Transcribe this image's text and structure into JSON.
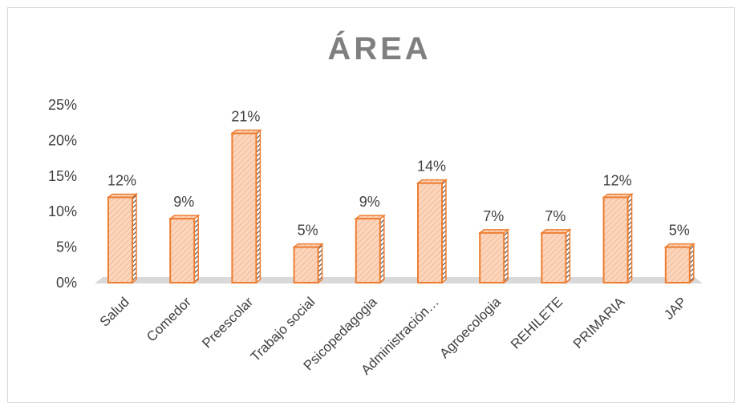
{
  "chart_data": {
    "type": "bar",
    "title": "ÁREA",
    "categories": [
      "Salud",
      "Comedor",
      "Preescolar",
      "Trabajo social",
      "Psicopedagogia",
      "Administración…",
      "Agroecologia",
      "REHILETE",
      "PRIMARIA",
      "JAP"
    ],
    "values": [
      12,
      9,
      21,
      5,
      9,
      14,
      7,
      7,
      12,
      5
    ],
    "data_labels": [
      "12%",
      "9%",
      "21%",
      "5%",
      "9%",
      "14%",
      "7%",
      "7%",
      "12%",
      "5%"
    ],
    "y_ticks": [
      "0%",
      "5%",
      "10%",
      "15%",
      "20%",
      "25%"
    ],
    "ylim": [
      0,
      25
    ],
    "grid": false,
    "legend": "none",
    "bar_fill": "#fbd5bd",
    "bar_stroke": "#ed7d31",
    "floor_color": "#d9d9d9"
  }
}
